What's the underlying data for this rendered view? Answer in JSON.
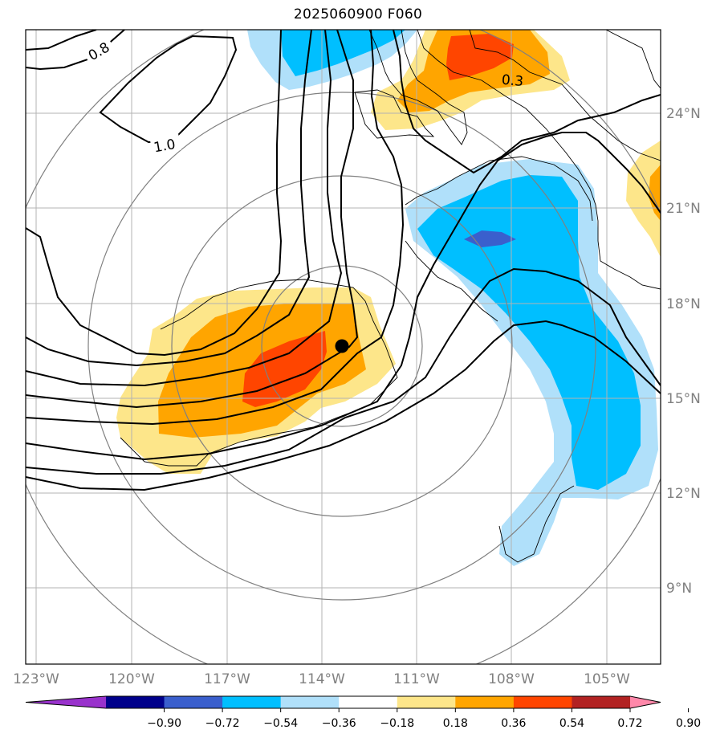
{
  "title": "2025060900 F060",
  "contour_labels": [
    "0.8",
    "1.0",
    "0.3"
  ],
  "lon_labels": [
    "123°W",
    "120°W",
    "117°W",
    "114°W",
    "111°W",
    "108°W",
    "105°W"
  ],
  "lat_labels": [
    "24°N",
    "21°N",
    "18°N",
    "15°N",
    "12°N",
    "9°N"
  ],
  "colorbar": {
    "tick_labels": [
      "−0.90",
      "−0.72",
      "−0.54",
      "−0.36",
      "−0.18",
      "0.18",
      "0.36",
      "0.54",
      "0.72",
      "0.90"
    ],
    "colors": [
      "#9932cc",
      "#00008b",
      "#3a5fcd",
      "#00bfff",
      "#b0e0fa",
      "#ffffff",
      "#fde68a",
      "#ffa500",
      "#ff4500",
      "#b22222",
      "#ff88aa"
    ]
  },
  "colors": {
    "gridline": "#b3b3b3",
    "range_ring": "#808080",
    "contour": "#000000",
    "coastline": "#000000",
    "axis_label": "#808080",
    "light_blue": "#b0e0fa",
    "deep_sky_blue": "#00bfff",
    "royal_blue": "#3a5fcd",
    "light_yellow": "#fde68a",
    "orange": "#ffa500",
    "orange_red": "#ff4500"
  },
  "storm_center_marker": "filled-black-dot"
}
